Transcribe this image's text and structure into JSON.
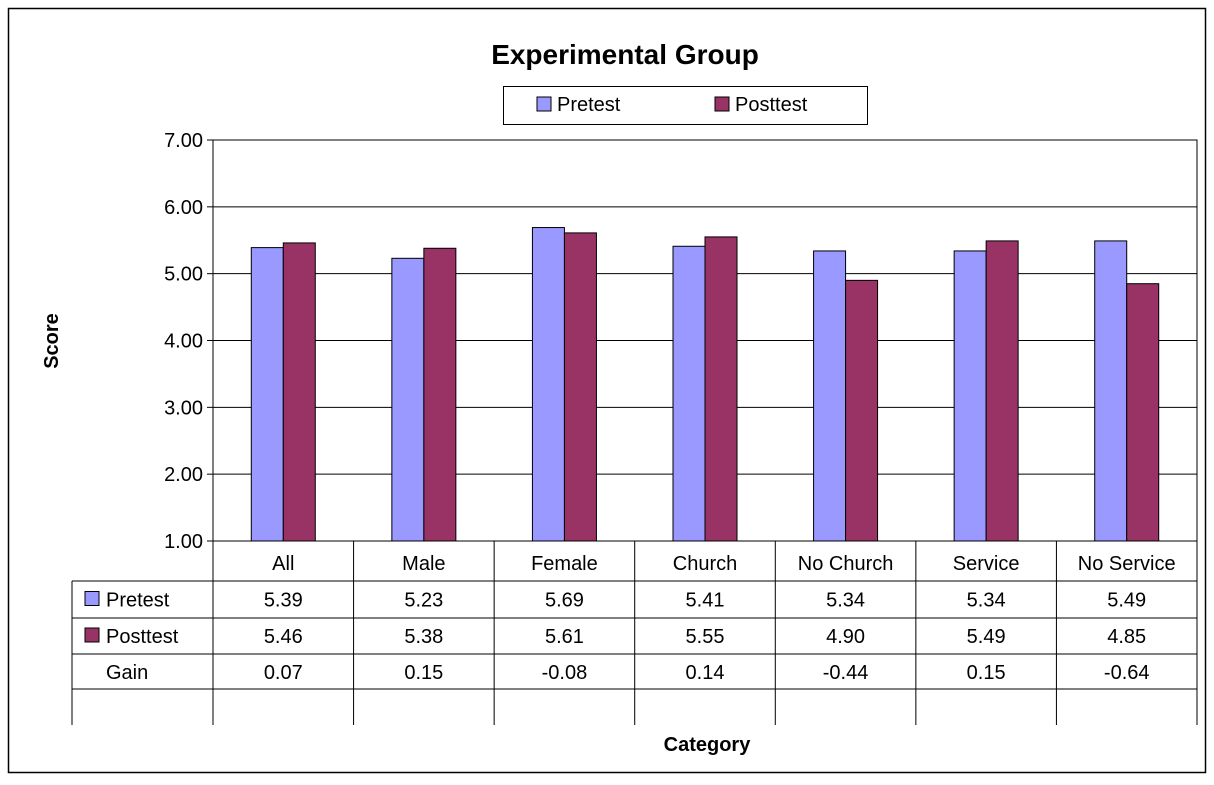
{
  "chart_data": {
    "type": "bar",
    "title": "Experimental Group",
    "xlabel": "Category",
    "ylabel": "Score",
    "ylim": [
      1,
      7
    ],
    "yticks": [
      "1.00",
      "2.00",
      "3.00",
      "4.00",
      "5.00",
      "6.00",
      "7.00"
    ],
    "categories": [
      "All",
      "Male",
      "Female",
      "Church",
      "No Church",
      "Service",
      "No Service"
    ],
    "series": [
      {
        "name": "Pretest",
        "color": "#9999ff",
        "values": [
          5.39,
          5.23,
          5.69,
          5.41,
          5.34,
          5.34,
          5.49
        ],
        "labels": [
          "5.39",
          "5.23",
          "5.69",
          "5.41",
          "5.34",
          "5.34",
          "5.49"
        ]
      },
      {
        "name": "Posttest",
        "color": "#993366",
        "values": [
          5.46,
          5.38,
          5.61,
          5.55,
          4.9,
          5.49,
          4.85
        ],
        "labels": [
          "5.46",
          "5.38",
          "5.61",
          "5.55",
          "4.90",
          "5.49",
          "4.85"
        ]
      }
    ],
    "table_rows": [
      {
        "label": "Gain",
        "values": [
          "0.07",
          "0.15",
          "-0.08",
          "0.14",
          "-0.44",
          "0.15",
          "-0.64"
        ]
      }
    ],
    "legend": "top",
    "grid": true
  }
}
